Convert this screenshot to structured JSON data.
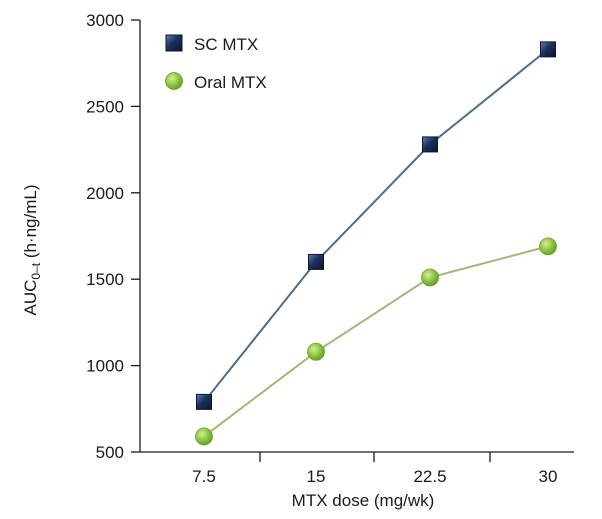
{
  "chart_data": {
    "type": "line",
    "x": [
      7.5,
      15,
      22.5,
      30
    ],
    "x_tick_labels": [
      "7.5",
      "15",
      "22.5",
      "30"
    ],
    "xlabel": "MTX dose (mg/wk)",
    "ylabel_main": "AUC",
    "ylabel_sub": "0–t",
    "ylabel_unit": " (h·ng/mL)",
    "ylim": [
      500,
      3000
    ],
    "y_ticks": [
      500,
      1000,
      1500,
      2000,
      2500,
      3000
    ],
    "grid": false,
    "legend_position": "top-left",
    "series": [
      {
        "name": "SC MTX",
        "values": [
          790,
          1600,
          2280,
          2830
        ],
        "marker": "square",
        "color": "#1b2f5e",
        "line_color": "#4a6f8c"
      },
      {
        "name": "Oral MTX",
        "values": [
          590,
          1080,
          1510,
          1690
        ],
        "marker": "circle",
        "color": "#8cc63f",
        "line_color": "#9fb97a"
      }
    ]
  }
}
